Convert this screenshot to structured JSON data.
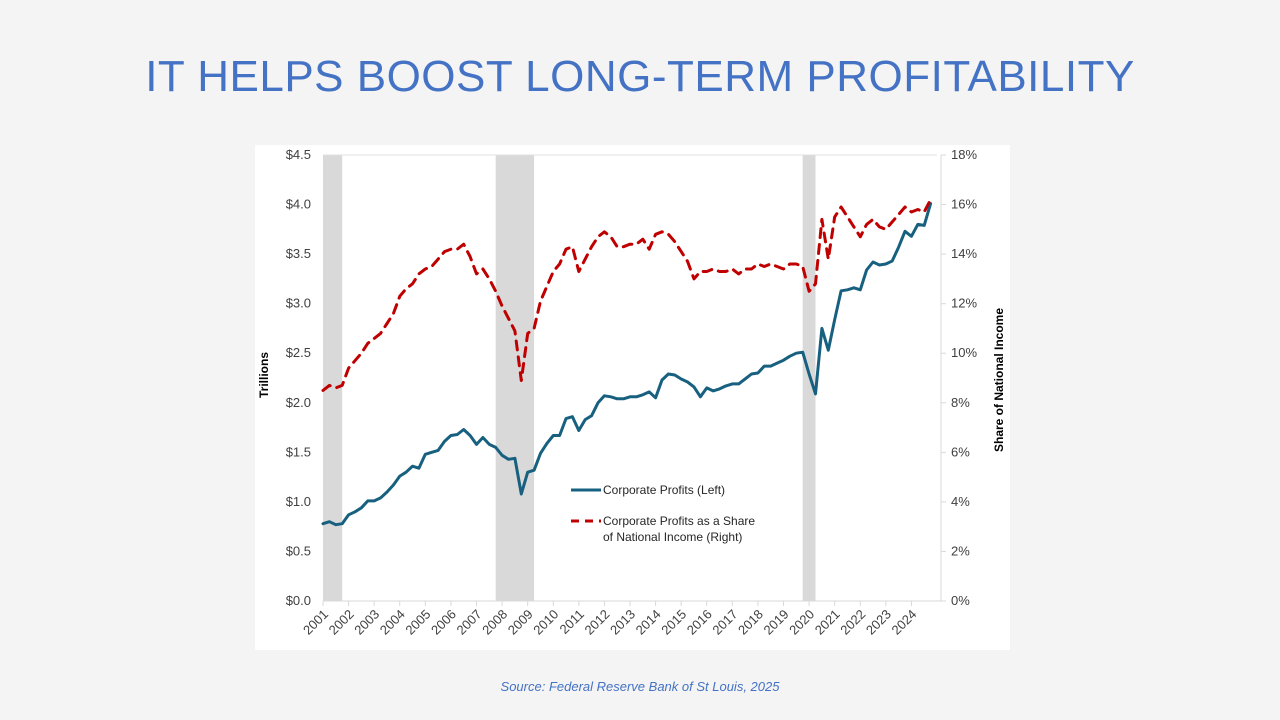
{
  "slide": {
    "title": "IT HELPS BOOST LONG-TERM PROFITABILITY",
    "source": "Source: Federal Reserve Bank of St Louis, 2025"
  },
  "chart_data": {
    "type": "line",
    "title": "",
    "xlabel": "",
    "ylabel_left": "Trillions",
    "ylabel_right": "Share of National Income",
    "data_provenance": "Series values are approximations traced from the rendered chart, not source data. Only axis tick labels are printed on the chart; intermediate values are estimated from pixel positions and may be off by roughly a quarter in time and a few hundredths in value.",
    "x_start": 2001.0,
    "x_end": 2025.0,
    "x_ticks": [
      "2001",
      "2002",
      "2003",
      "2004",
      "2005",
      "2006",
      "2007",
      "2008",
      "2009",
      "2010",
      "2011",
      "2012",
      "2013",
      "2014",
      "2015",
      "2016",
      "2017",
      "2018",
      "2019",
      "2020",
      "2021",
      "2022",
      "2023",
      "2024"
    ],
    "y_left": {
      "ylim": [
        0,
        4.5
      ],
      "ticks": [
        0,
        0.5,
        1.0,
        1.5,
        2.0,
        2.5,
        3.0,
        3.5,
        4.0,
        4.5
      ],
      "tick_labels": [
        "$0.0",
        "$0.5",
        "$1.0",
        "$1.5",
        "$2.0",
        "$2.5",
        "$3.0",
        "$3.5",
        "$4.0",
        "$4.5"
      ]
    },
    "y_right": {
      "ylim": [
        0,
        18
      ],
      "ticks": [
        0,
        2,
        4,
        6,
        8,
        10,
        12,
        14,
        16,
        18
      ],
      "tick_labels": [
        "0%",
        "2%",
        "4%",
        "6%",
        "8%",
        "10%",
        "12%",
        "14%",
        "16%",
        "18%"
      ]
    },
    "grid": false,
    "legend_position": "center-left",
    "recessions": [
      {
        "start": 2001.0,
        "end": 2001.75
      },
      {
        "start": 2007.75,
        "end": 2009.25
      },
      {
        "start": 2019.75,
        "end": 2020.25
      }
    ],
    "recession_color": "#d9d9d9",
    "series": [
      {
        "name": "Corporate Profits (Left)",
        "axis": "left",
        "color": "#17607f",
        "style": "solid",
        "x": [
          2001.0,
          2001.25,
          2001.5,
          2001.75,
          2002.0,
          2002.25,
          2002.5,
          2002.75,
          2003.0,
          2003.25,
          2003.5,
          2003.75,
          2004.0,
          2004.25,
          2004.5,
          2004.75,
          2005.0,
          2005.25,
          2005.5,
          2005.75,
          2006.0,
          2006.25,
          2006.5,
          2006.75,
          2007.0,
          2007.25,
          2007.5,
          2007.75,
          2008.0,
          2008.25,
          2008.5,
          2008.75,
          2009.0,
          2009.25,
          2009.5,
          2009.75,
          2010.0,
          2010.25,
          2010.5,
          2010.75,
          2011.0,
          2011.25,
          2011.5,
          2011.75,
          2012.0,
          2012.25,
          2012.5,
          2012.75,
          2013.0,
          2013.25,
          2013.5,
          2013.75,
          2014.0,
          2014.25,
          2014.5,
          2014.75,
          2015.0,
          2015.25,
          2015.5,
          2015.75,
          2016.0,
          2016.25,
          2016.5,
          2016.75,
          2017.0,
          2017.25,
          2017.5,
          2017.75,
          2018.0,
          2018.25,
          2018.5,
          2018.75,
          2019.0,
          2019.25,
          2019.5,
          2019.75,
          2020.0,
          2020.25,
          2020.5,
          2020.75,
          2021.0,
          2021.25,
          2021.5,
          2021.75,
          2022.0,
          2022.25,
          2022.5,
          2022.75,
          2023.0,
          2023.25,
          2023.5,
          2023.75,
          2024.0,
          2024.25,
          2024.5,
          2024.75
        ],
        "values": [
          0.78,
          0.8,
          0.77,
          0.78,
          0.87,
          0.9,
          0.94,
          1.01,
          1.01,
          1.04,
          1.1,
          1.17,
          1.26,
          1.3,
          1.36,
          1.34,
          1.48,
          1.5,
          1.52,
          1.61,
          1.67,
          1.68,
          1.73,
          1.67,
          1.58,
          1.65,
          1.58,
          1.55,
          1.47,
          1.43,
          1.44,
          1.08,
          1.3,
          1.32,
          1.49,
          1.59,
          1.67,
          1.67,
          1.84,
          1.86,
          1.72,
          1.83,
          1.87,
          2.0,
          2.07,
          2.06,
          2.04,
          2.04,
          2.06,
          2.06,
          2.08,
          2.11,
          2.05,
          2.23,
          2.29,
          2.28,
          2.24,
          2.21,
          2.16,
          2.06,
          2.15,
          2.12,
          2.14,
          2.17,
          2.19,
          2.19,
          2.24,
          2.29,
          2.3,
          2.37,
          2.37,
          2.4,
          2.43,
          2.47,
          2.5,
          2.51,
          2.29,
          2.09,
          2.75,
          2.53,
          2.84,
          3.13,
          3.14,
          3.16,
          3.14,
          3.34,
          3.42,
          3.39,
          3.4,
          3.43,
          3.57,
          3.73,
          3.68,
          3.8,
          3.79,
          4.01
        ]
      },
      {
        "name": "Corporate Profits as a Share of National Income (Right)",
        "axis": "right",
        "color": "#c00000",
        "style": "dashed",
        "x": [
          2001.0,
          2001.25,
          2001.5,
          2001.75,
          2002.0,
          2002.25,
          2002.5,
          2002.75,
          2003.0,
          2003.25,
          2003.5,
          2003.75,
          2004.0,
          2004.25,
          2004.5,
          2004.75,
          2005.0,
          2005.25,
          2005.5,
          2005.75,
          2006.0,
          2006.25,
          2006.5,
          2006.75,
          2007.0,
          2007.25,
          2007.5,
          2007.75,
          2008.0,
          2008.25,
          2008.5,
          2008.75,
          2009.0,
          2009.25,
          2009.5,
          2009.75,
          2010.0,
          2010.25,
          2010.5,
          2010.75,
          2011.0,
          2011.25,
          2011.5,
          2011.75,
          2012.0,
          2012.25,
          2012.5,
          2012.75,
          2013.0,
          2013.25,
          2013.5,
          2013.75,
          2014.0,
          2014.25,
          2014.5,
          2014.75,
          2015.0,
          2015.25,
          2015.5,
          2015.75,
          2016.0,
          2016.25,
          2016.5,
          2016.75,
          2017.0,
          2017.25,
          2017.5,
          2017.75,
          2018.0,
          2018.25,
          2018.5,
          2018.75,
          2019.0,
          2019.25,
          2019.5,
          2019.75,
          2020.0,
          2020.25,
          2020.5,
          2020.75,
          2021.0,
          2021.25,
          2021.5,
          2021.75,
          2022.0,
          2022.25,
          2022.5,
          2022.75,
          2023.0,
          2023.25,
          2023.5,
          2023.75,
          2024.0,
          2024.25,
          2024.5,
          2024.75
        ],
        "values": [
          8.5,
          8.7,
          8.6,
          8.7,
          9.4,
          9.7,
          10.0,
          10.4,
          10.6,
          10.8,
          11.2,
          11.6,
          12.3,
          12.6,
          12.8,
          13.2,
          13.4,
          13.5,
          13.8,
          14.1,
          14.2,
          14.2,
          14.4,
          13.9,
          13.2,
          13.4,
          13.0,
          12.5,
          11.9,
          11.4,
          10.9,
          8.9,
          10.8,
          11.0,
          12.1,
          12.7,
          13.3,
          13.6,
          14.2,
          14.3,
          13.3,
          13.8,
          14.3,
          14.7,
          14.9,
          14.7,
          14.3,
          14.3,
          14.4,
          14.4,
          14.6,
          14.2,
          14.8,
          14.9,
          14.8,
          14.5,
          14.1,
          13.7,
          13.0,
          13.3,
          13.3,
          13.4,
          13.3,
          13.3,
          13.4,
          13.2,
          13.4,
          13.4,
          13.6,
          13.5,
          13.6,
          13.5,
          13.4,
          13.6,
          13.6,
          13.5,
          12.5,
          12.8,
          15.4,
          13.8,
          15.5,
          15.9,
          15.5,
          15.1,
          14.7,
          15.2,
          15.4,
          15.1,
          15.0,
          15.3,
          15.6,
          15.9,
          15.7,
          15.8,
          15.7,
          16.2
        ]
      }
    ]
  }
}
